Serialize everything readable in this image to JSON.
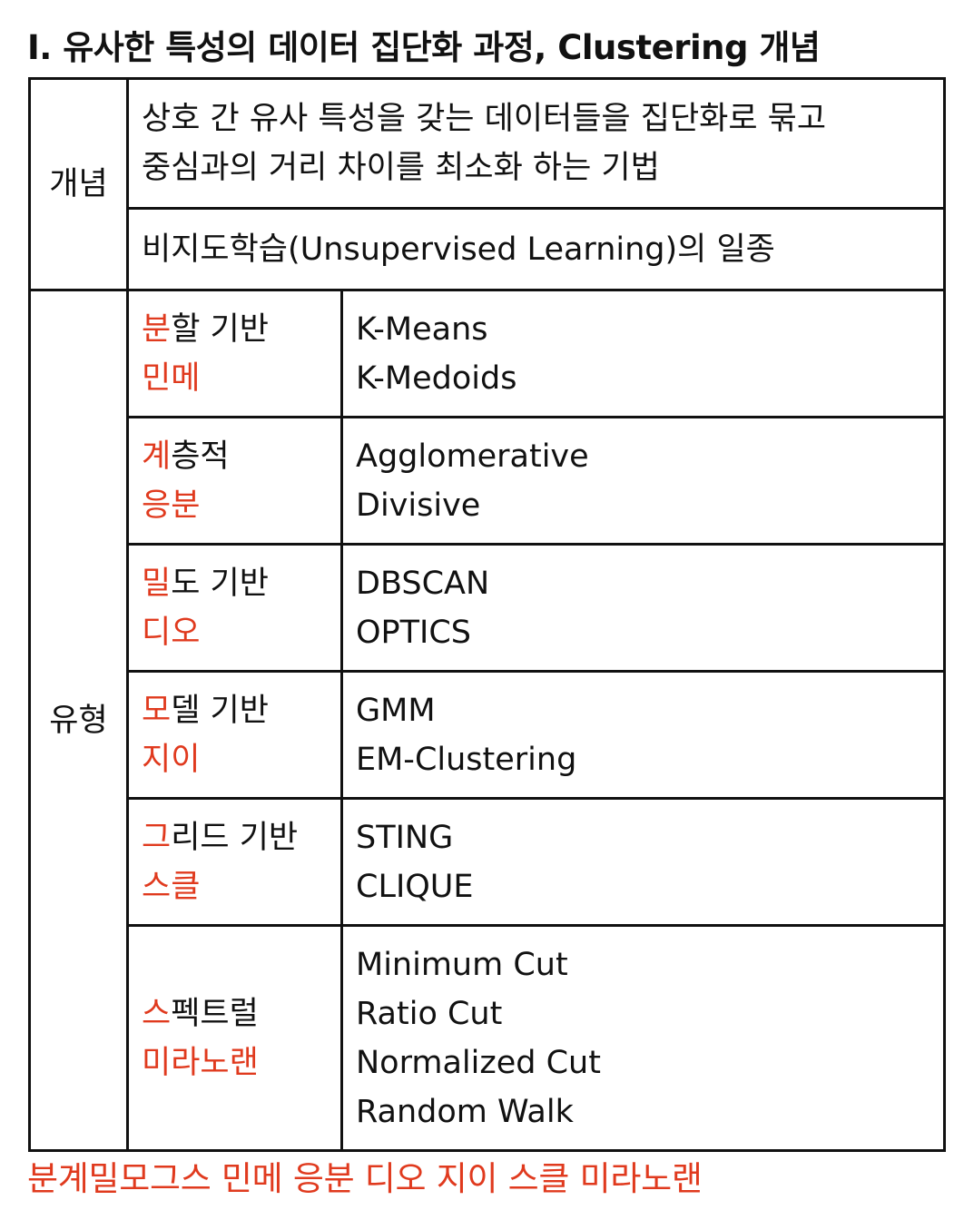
{
  "title": "I. 유사한 특성의 데이터 집단화 과정, Clustering 개념",
  "concept": {
    "label": "개념",
    "definition_lines": [
      "상호 간 유사 특성을 갖는 데이터들을 집단화로 묶고",
      "중심과의 거리 차이를 최소화 하는 기법"
    ],
    "category": "비지도학습(Unsupervised Learning)의 일종"
  },
  "types": {
    "label": "유형",
    "rows": [
      {
        "type_first": "분",
        "type_rest": "할 기반",
        "mnemonic": "민메",
        "algorithms": [
          "K-Means",
          "K-Medoids"
        ]
      },
      {
        "type_first": "계",
        "type_rest": "층적",
        "mnemonic": "응분",
        "algorithms": [
          "Agglomerative",
          "Divisive"
        ]
      },
      {
        "type_first": "밀",
        "type_rest": "도 기반",
        "mnemonic": "디오",
        "algorithms": [
          "DBSCAN",
          "OPTICS"
        ]
      },
      {
        "type_first": "모",
        "type_rest": "델 기반",
        "mnemonic": "지이",
        "algorithms": [
          "GMM",
          "EM-Clustering"
        ]
      },
      {
        "type_first": "그",
        "type_rest": "리드 기반",
        "mnemonic": "스클",
        "algorithms": [
          "STING",
          "CLIQUE"
        ]
      },
      {
        "type_first": "스",
        "type_rest": "펙트럴",
        "mnemonic": "미라노랜",
        "algorithms": [
          "Minimum Cut",
          "Ratio Cut",
          "Normalized Cut",
          "Random Walk"
        ]
      }
    ]
  },
  "footer_mnemonic": "분계밀모그스 민메 응분 디오 지이 스클 미라노랜",
  "colors": {
    "accent_red": "#e03a1e",
    "text": "#111111",
    "border": "#111111"
  }
}
